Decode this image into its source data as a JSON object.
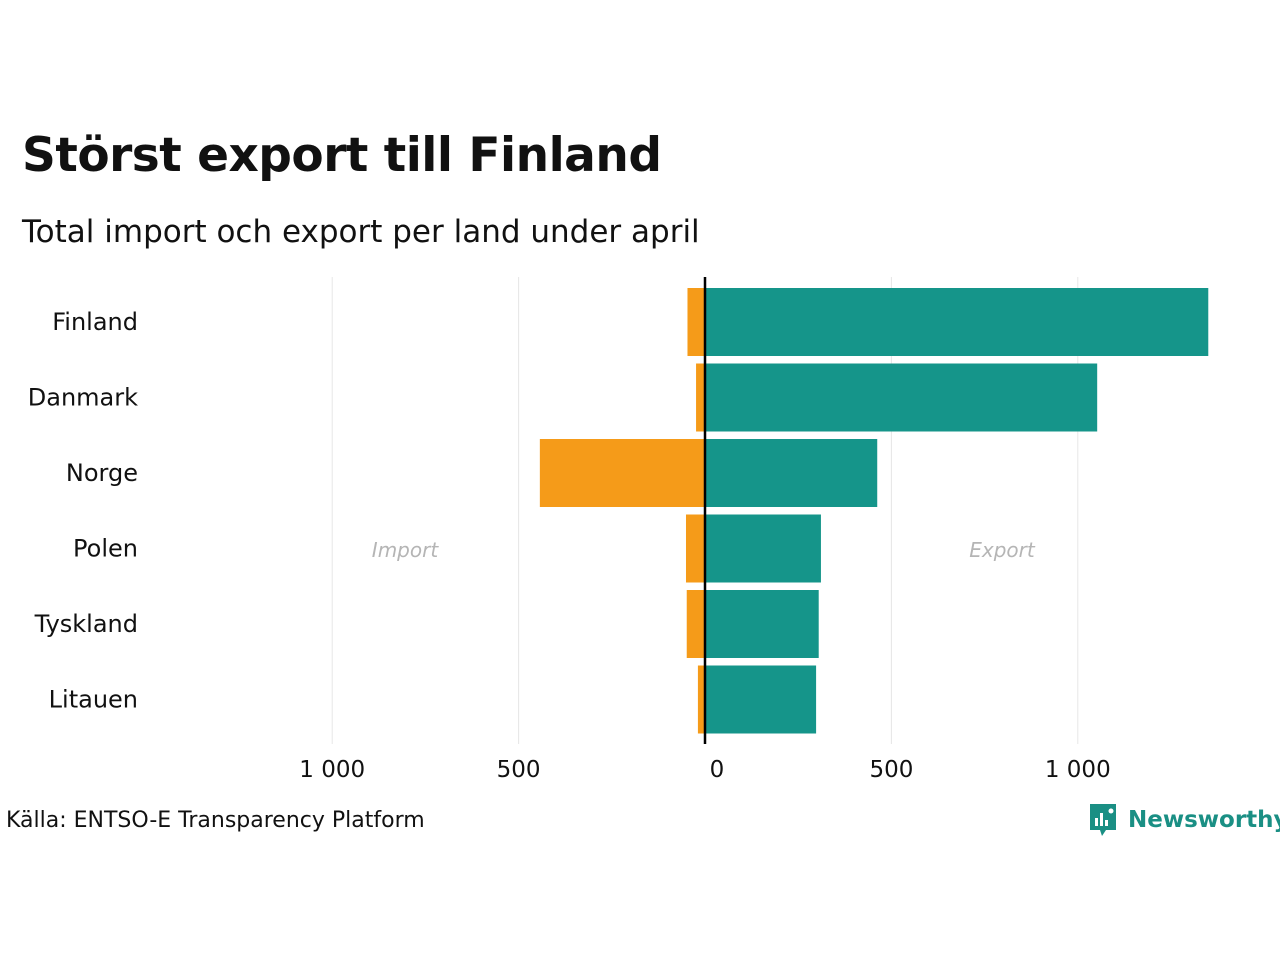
{
  "title": "Störst export till Finland",
  "subtitle": "Total import och export per land under april",
  "source": "Källa: ENTSO-E Transparency Platform",
  "logo": {
    "text": "Newsworthy",
    "icon": "newsworthy-logo-icon",
    "color": "#1a8f84"
  },
  "colors": {
    "import": "#f59b19",
    "export": "#15958a",
    "grid": "#e6e6e6",
    "axis": "#000000",
    "annotation": "#b5b5b5"
  },
  "chart_data": {
    "type": "bar",
    "orientation": "horizontal-diverging",
    "categories": [
      "Finland",
      "Danmark",
      "Norge",
      "Polen",
      "Tyskland",
      "Litauen"
    ],
    "series": [
      {
        "name": "Import",
        "values": [
          47,
          24,
          443,
          51,
          49,
          19
        ]
      },
      {
        "name": "Export",
        "values": [
          1350,
          1052,
          462,
          311,
          305,
          298
        ]
      }
    ],
    "xlim": [
      -1000,
      1350
    ],
    "xticks": [
      -1000,
      -500,
      0,
      500,
      1000
    ],
    "xtick_labels": [
      "1 000",
      "500",
      "0",
      "500",
      "1 000"
    ],
    "annotations": {
      "left": "Import",
      "right": "Export"
    },
    "grid": true,
    "legend": "none"
  }
}
